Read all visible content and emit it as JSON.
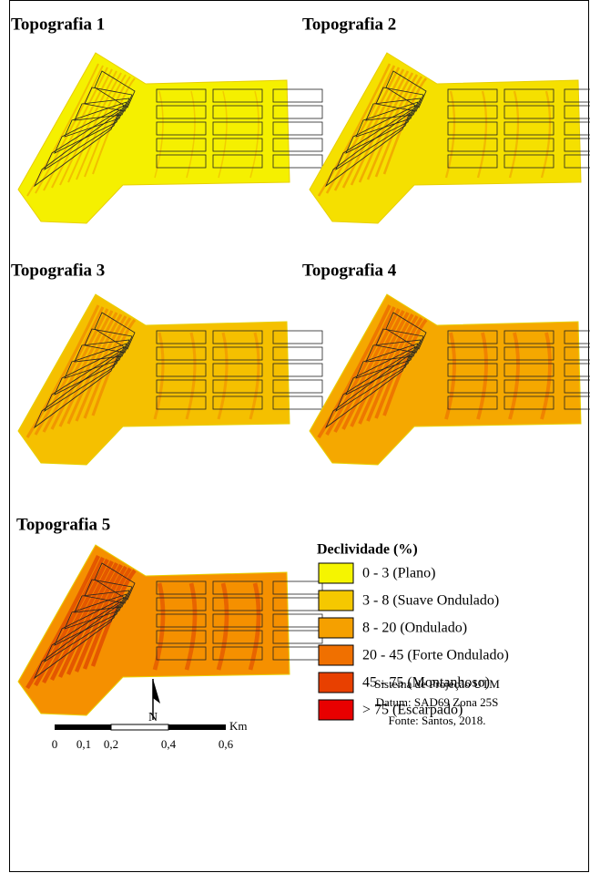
{
  "panels": [
    {
      "title": "Topografia 1"
    },
    {
      "title": "Topografia 2"
    },
    {
      "title": "Topografia 3"
    },
    {
      "title": "Topografia 4"
    },
    {
      "title": "Topografia 5"
    }
  ],
  "legend": {
    "title": "Declividade (%)",
    "items": [
      {
        "label": "0 - 3 (Plano)",
        "color": "#f5f500"
      },
      {
        "label": "3 - 8 (Suave Ondulado)",
        "color": "#f5c800"
      },
      {
        "label": "8 - 20 (Ondulado)",
        "color": "#f5a000"
      },
      {
        "label": "20 - 45 (Forte Ondulado)",
        "color": "#f07000"
      },
      {
        "label": "45 - 75 (Montanhoso)",
        "color": "#e84000"
      },
      {
        "label": "> 75 (Escarpado)",
        "color": "#e80000"
      }
    ]
  },
  "north": "N",
  "scale": {
    "unit": "Km",
    "labels": [
      "0",
      "0,1",
      "0,2",
      "0,4",
      "0,6"
    ]
  },
  "notes": [
    "Sistema de Projeção UTM",
    "Datum: SAD69 Zona 25S",
    "Fonte: Santos, 2018."
  ]
}
